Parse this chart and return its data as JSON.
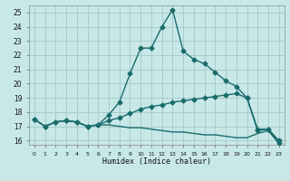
{
  "xlabel": "Humidex (Indice chaleur)",
  "xlim": [
    -0.5,
    23.5
  ],
  "ylim": [
    15.7,
    25.5
  ],
  "background_color": "#c8e8e8",
  "grid_color": "#a8cccc",
  "line_color": "#1a6b6b",
  "line1_x": [
    0,
    1,
    2,
    3,
    4,
    5,
    6,
    7,
    8,
    9,
    10,
    11,
    12,
    13,
    14,
    15,
    16,
    17,
    18,
    19,
    20,
    21,
    22,
    23
  ],
  "line1_y": [
    17.5,
    17.0,
    17.3,
    17.4,
    17.3,
    17.0,
    17.1,
    17.8,
    18.7,
    20.7,
    22.5,
    22.5,
    24.0,
    25.2,
    22.3,
    21.7,
    21.4,
    20.8,
    20.2,
    19.8,
    19.0,
    16.7,
    16.8,
    15.8
  ],
  "line2_x": [
    0,
    1,
    2,
    3,
    4,
    5,
    6,
    7,
    8,
    9,
    10,
    11,
    12,
    13,
    14,
    15,
    16,
    17,
    18,
    19,
    20,
    21,
    22,
    23
  ],
  "line2_y": [
    17.5,
    17.0,
    17.3,
    17.4,
    17.3,
    17.0,
    17.1,
    17.4,
    17.6,
    17.9,
    18.2,
    18.4,
    18.5,
    18.7,
    18.8,
    18.9,
    19.0,
    19.1,
    19.2,
    19.3,
    19.0,
    16.8,
    16.8,
    16.0
  ],
  "line3_x": [
    0,
    1,
    2,
    3,
    4,
    5,
    6,
    7,
    8,
    9,
    10,
    11,
    12,
    13,
    14,
    15,
    16,
    17,
    18,
    19,
    20,
    21,
    22,
    23
  ],
  "line3_y": [
    17.5,
    17.0,
    17.3,
    17.4,
    17.3,
    17.0,
    17.1,
    17.1,
    17.0,
    16.9,
    16.9,
    16.8,
    16.7,
    16.6,
    16.6,
    16.5,
    16.4,
    16.4,
    16.3,
    16.2,
    16.2,
    16.5,
    16.7,
    15.8
  ],
  "yticks": [
    16,
    17,
    18,
    19,
    20,
    21,
    22,
    23,
    24,
    25
  ],
  "xticks": [
    0,
    1,
    2,
    3,
    4,
    5,
    6,
    7,
    8,
    9,
    10,
    11,
    12,
    13,
    14,
    15,
    16,
    17,
    18,
    19,
    20,
    21,
    22,
    23
  ],
  "marker_size": 2.5,
  "line_width": 1.0
}
